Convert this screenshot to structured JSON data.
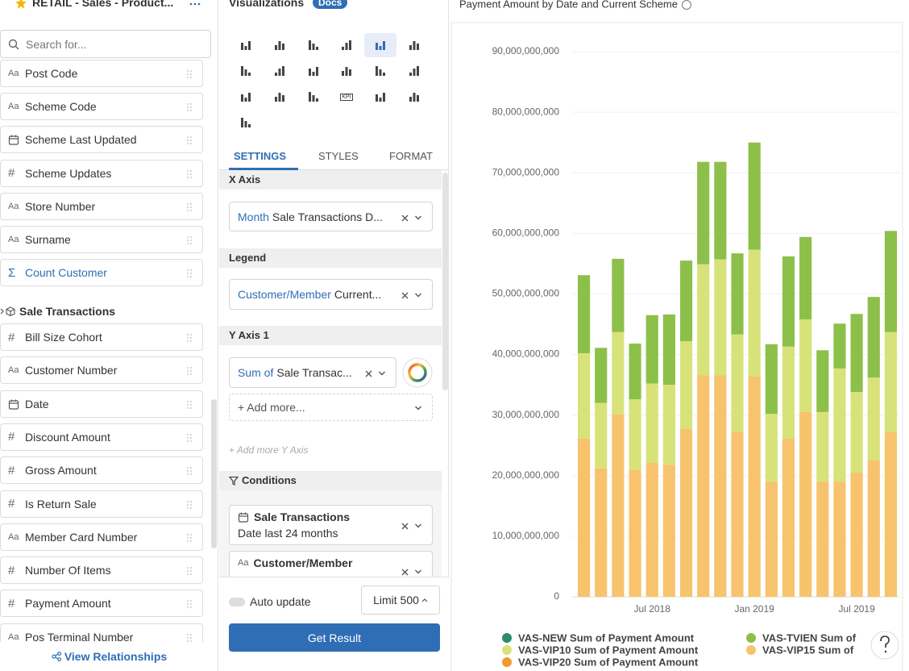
{
  "header": {
    "title": "RETAIL - Sales - Product..."
  },
  "search_placeholder": "Search for...",
  "fields": [
    {
      "icon": "Aa",
      "label": "Post Code"
    },
    {
      "icon": "Aa",
      "label": "Scheme Code"
    },
    {
      "date": true,
      "label": "Scheme Last Updated"
    },
    {
      "icon": "#",
      "label": "Scheme Updates"
    },
    {
      "icon": "Aa",
      "label": "Store Number"
    },
    {
      "icon": "Aa",
      "label": "Surname"
    },
    {
      "icon": "Σ",
      "label": "Count Customer",
      "color": "#2f6eb5"
    }
  ],
  "group": {
    "title": "Sale Transactions",
    "fields": [
      {
        "icon": "#",
        "label": "Bill Size Cohort"
      },
      {
        "icon": "Aa",
        "label": "Customer Number"
      },
      {
        "date": true,
        "label": "Date"
      },
      {
        "icon": "#",
        "label": "Discount Amount"
      },
      {
        "icon": "#",
        "label": "Gross Amount"
      },
      {
        "icon": "#",
        "label": "Is Return Sale"
      },
      {
        "icon": "Aa",
        "label": "Member Card Number"
      },
      {
        "icon": "#",
        "label": "Number Of Items"
      },
      {
        "icon": "#",
        "label": "Payment Amount"
      },
      {
        "icon": "Aa",
        "label": "Pos Terminal Number"
      }
    ]
  },
  "footer": "View Relationships",
  "viz": {
    "title": "Visualizations",
    "docs": "Docs",
    "kpi_icon": "KPI",
    "tabs": [
      "SETTINGS",
      "STYLES",
      "FORMAT"
    ],
    "x_axis": {
      "title": "X Axis",
      "prefix": "Month",
      "field": "Sale Transactions D..."
    },
    "legend": {
      "title": "Legend",
      "prefix": "Customer/Member",
      "field": "Current..."
    },
    "y_axis": {
      "title": "Y Axis 1",
      "prefix": "Sum of",
      "field": "Sale Transac..."
    },
    "add_more": "+ Add more...",
    "add_y": "+ Add more Y Axis",
    "conditions": {
      "title": "Conditions",
      "items": [
        {
          "date": true,
          "title": "Sale Transactions",
          "detail": "Date last 24 months"
        },
        {
          "icon": "Aa",
          "title": "Customer/Member"
        }
      ]
    },
    "auto_update": "Auto update",
    "limit": "Limit 500",
    "submit": "Get Result"
  },
  "chart_data": {
    "type": "bar",
    "stacked": true,
    "title": "Payment Amount by Date and Current Scheme",
    "categories": [
      null,
      null,
      null,
      null,
      "Jul 2018",
      null,
      null,
      null,
      null,
      null,
      "Jan 2019",
      null,
      null,
      null,
      null,
      null,
      "Jul 2019",
      null,
      null
    ],
    "series": [
      {
        "name": "VAS-NEW Sum of Payment Amount",
        "color": "#2e8b6e",
        "values": [
          0,
          0,
          0,
          0,
          0,
          0,
          0,
          0,
          0,
          0,
          0,
          0,
          0,
          0,
          0,
          0,
          0,
          0,
          0
        ]
      },
      {
        "name": "VAS-TVIEN Sum of",
        "color": "#8dc04a",
        "values": [
          12900000000,
          9100000000,
          12100000000,
          9200000000,
          11300000000,
          11600000000,
          13300000000,
          16900000000,
          16100000000,
          13400000000,
          17700000000,
          11500000000,
          14900000000,
          13600000000,
          10200000000,
          7400000000,
          12900000000,
          13300000000,
          16700000000
        ]
      },
      {
        "name": "VAS-VIP10 Sum of Payment Amount",
        "color": "#d8e27a",
        "values": [
          14100000000,
          10800000000,
          13600000000,
          11700000000,
          13100000000,
          13200000000,
          14500000000,
          18300000000,
          19100000000,
          16100000000,
          20900000000,
          11200000000,
          15200000000,
          15300000000,
          11500000000,
          18700000000,
          13300000000,
          13600000000,
          16500000000
        ]
      },
      {
        "name": "VAS-VIP15 Sum of",
        "color": "#f7c36c",
        "values": [
          26100000000,
          21200000000,
          30100000000,
          20900000000,
          22100000000,
          21800000000,
          27700000000,
          36600000000,
          36600000000,
          27200000000,
          36400000000,
          19000000000,
          26100000000,
          30500000000,
          19000000000,
          19000000000,
          20500000000,
          22600000000,
          27200000000
        ]
      },
      {
        "name": "VAS-VIP20 Sum of Payment Amount",
        "color": "#f39a2c",
        "values": [
          0,
          0,
          0,
          0,
          0,
          0,
          0,
          0,
          0,
          0,
          0,
          0,
          0,
          0,
          0,
          0,
          0,
          0,
          0
        ]
      }
    ],
    "ylim": [
      0,
      90000000000
    ],
    "yticks": [
      0,
      {
        "value": 10000000000,
        "label": "10,000,000,000"
      },
      {
        "value": 20000000000,
        "label": "20,000,000,000"
      },
      {
        "value": 30000000000,
        "label": "30,000,000,000"
      },
      {
        "value": 40000000000,
        "label": "40,000,000,000"
      },
      {
        "value": 50000000000,
        "label": "50,000,000,000"
      },
      {
        "value": 60000000000,
        "label": "60,000,000,000"
      },
      {
        "value": 70000000000,
        "label": "70,000,000,000"
      },
      {
        "value": 80000000000,
        "label": "80,000,000,000"
      },
      {
        "value": 90000000000,
        "label": "90,000,000,000"
      }
    ],
    "grid": true,
    "legend": "bottom"
  }
}
